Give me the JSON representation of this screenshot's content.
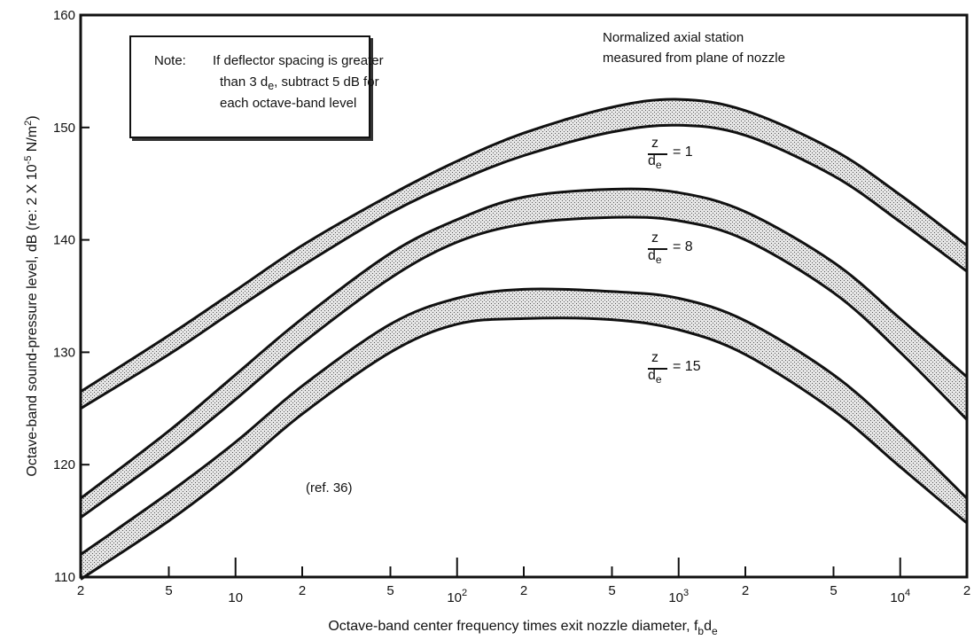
{
  "chart_data": {
    "type": "area",
    "xscale": "log",
    "xlim": [
      2,
      20000
    ],
    "ylim": [
      110,
      160
    ],
    "xlabel_main": "Octave-band center frequency times exit nozzle diameter, f",
    "xlabel_sub1": "b",
    "xlabel_mid": "d",
    "xlabel_sub2": "e",
    "ylabel": "Octave-band sound-pressure level, dB (re:  2 X 10",
    "ylabel_sup1": "-5",
    "ylabel_mid": " N/m",
    "ylabel_sup2": "2",
    "ylabel_end": ")",
    "yticks": [
      110,
      120,
      130,
      140,
      150,
      160
    ],
    "xtick_labels": [
      {
        "x": 2,
        "text": "2"
      },
      {
        "x": 5,
        "text": "5"
      },
      {
        "x": 10,
        "text": "10"
      },
      {
        "x": 20,
        "text": "2"
      },
      {
        "x": 50,
        "text": "5"
      },
      {
        "x": 100,
        "text": "10",
        "sup": "2"
      },
      {
        "x": 200,
        "text": "2"
      },
      {
        "x": 500,
        "text": "5"
      },
      {
        "x": 1000,
        "text": "10",
        "sup": "3"
      },
      {
        "x": 2000,
        "text": "2"
      },
      {
        "x": 5000,
        "text": "5"
      },
      {
        "x": 10000,
        "text": "10",
        "sup": "4"
      },
      {
        "x": 20000,
        "text": "2"
      }
    ],
    "x": [
      2,
      5,
      10,
      20,
      50,
      100,
      200,
      500,
      1000,
      2000,
      5000,
      10000,
      20000
    ],
    "series": [
      {
        "label": "1",
        "upper": [
          126.5,
          131.5,
          135.5,
          139.5,
          144.0,
          147.0,
          149.5,
          151.8,
          152.5,
          151.5,
          148.0,
          144.0,
          139.5
        ],
        "lower": [
          125.0,
          129.8,
          133.8,
          137.7,
          142.4,
          145.2,
          147.5,
          149.6,
          150.2,
          149.3,
          145.7,
          141.6,
          137.2
        ]
      },
      {
        "label": "8",
        "upper": [
          117.0,
          123.0,
          128.0,
          133.0,
          138.8,
          141.8,
          143.8,
          144.5,
          144.2,
          142.5,
          138.0,
          133.0,
          127.8
        ],
        "lower": [
          115.3,
          121.0,
          125.8,
          130.8,
          136.6,
          139.8,
          141.4,
          142.0,
          141.7,
          140.0,
          135.3,
          130.0,
          124.0
        ]
      },
      {
        "label": "15",
        "upper": [
          112.0,
          117.5,
          122.0,
          127.0,
          132.5,
          134.8,
          135.6,
          135.4,
          134.8,
          132.8,
          128.0,
          122.8,
          117.0
        ],
        "lower": [
          109.8,
          115.0,
          119.5,
          124.5,
          130.0,
          132.5,
          133.0,
          132.9,
          132.0,
          129.8,
          124.8,
          119.8,
          114.8
        ]
      }
    ]
  },
  "note": {
    "label": "Note:",
    "line1": "If deflector spacing is greater",
    "line2_a": "than 3 d",
    "line2_sub": "e",
    "line2_b": ", subtract 5 dB for",
    "line3": "each octave-band level"
  },
  "station_title_1": "Normalized axial station",
  "station_title_2": "measured from plane of nozzle",
  "ref_note": "(ref. 36)",
  "frac_num": "z",
  "frac_den": "d",
  "frac_den_sub": "e",
  "frac_eq": "="
}
